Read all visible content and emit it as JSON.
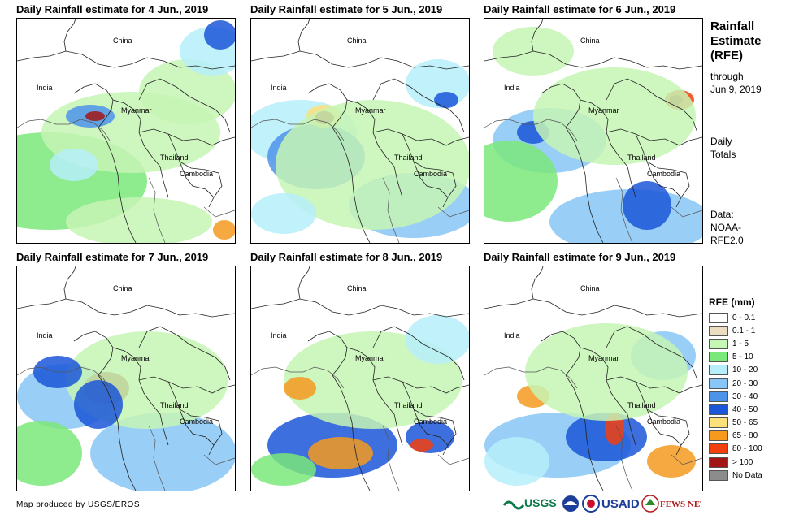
{
  "panels": [
    {
      "title": "Daily Rainfall estimate for 4 Jun., 2019",
      "labels": {
        "china": "China",
        "india": "India",
        "myanmar": "Myanmar",
        "thailand": "Thailand",
        "cambodia": "Cambodia"
      }
    },
    {
      "title": "Daily Rainfall estimate for 5 Jun., 2019",
      "labels": {
        "china": "China",
        "india": "India",
        "myanmar": "Myanmar",
        "thailand": "Thailand",
        "cambodia": "Cambodia"
      }
    },
    {
      "title": "Daily Rainfall estimate for 6 Jun., 2019",
      "labels": {
        "china": "China",
        "india": "India",
        "myanmar": "Myanmar",
        "thailand": "Thailand",
        "cambodia": "Cambodia"
      }
    },
    {
      "title": "Daily Rainfall estimate for 7 Jun., 2019",
      "labels": {
        "china": "China",
        "india": "India",
        "myanmar": "Myanmar",
        "thailand": "Thailand",
        "cambodia": "Cambodia"
      }
    },
    {
      "title": "Daily Rainfall estimate for 8 Jun., 2019",
      "labels": {
        "china": "China",
        "india": "India",
        "myanmar": "Myanmar",
        "thailand": "Thailand",
        "cambodia": "Cambodia"
      }
    },
    {
      "title": "Daily Rainfall estimate for 9 Jun., 2019",
      "labels": {
        "china": "China",
        "india": "India",
        "myanmar": "Myanmar",
        "thailand": "Thailand",
        "cambodia": "Cambodia"
      }
    }
  ],
  "sidebar": {
    "title_line1": "Rainfall",
    "title_line2": "Estimate",
    "title_line3": "(RFE)",
    "through": "through",
    "date": "Jun 9, 2019",
    "daily": "Daily",
    "totals": "Totals",
    "data_label": "Data:",
    "data_source1": "NOAA-",
    "data_source2": "RFE2.0"
  },
  "legend": {
    "title": "RFE (mm)",
    "items": [
      {
        "label": "0 - 0.1",
        "color": "#ffffff"
      },
      {
        "label": "0.1 - 1",
        "color": "#ecdcc0"
      },
      {
        "label": "1 - 5",
        "color": "#c6f5b4"
      },
      {
        "label": "5 - 10",
        "color": "#7ae87a"
      },
      {
        "label": "10 - 20",
        "color": "#b6eefa"
      },
      {
        "label": "20 - 30",
        "color": "#87c6f6"
      },
      {
        "label": "30 - 40",
        "color": "#4d93ea"
      },
      {
        "label": "40 - 50",
        "color": "#1b56d8"
      },
      {
        "label": "50 - 65",
        "color": "#fbe17a"
      },
      {
        "label": "65 - 80",
        "color": "#f59a1e"
      },
      {
        "label": "80 - 100",
        "color": "#f23f0e"
      },
      {
        "label": "> 100",
        "color": "#a31616"
      },
      {
        "label": "No Data",
        "color": "#8c8c8c"
      }
    ]
  },
  "footer": {
    "credit": "Map produced by USGS/EROS"
  },
  "logos": {
    "usgs": "USGS",
    "usaid": "USAID",
    "fewsnet": "FEWS NET"
  }
}
